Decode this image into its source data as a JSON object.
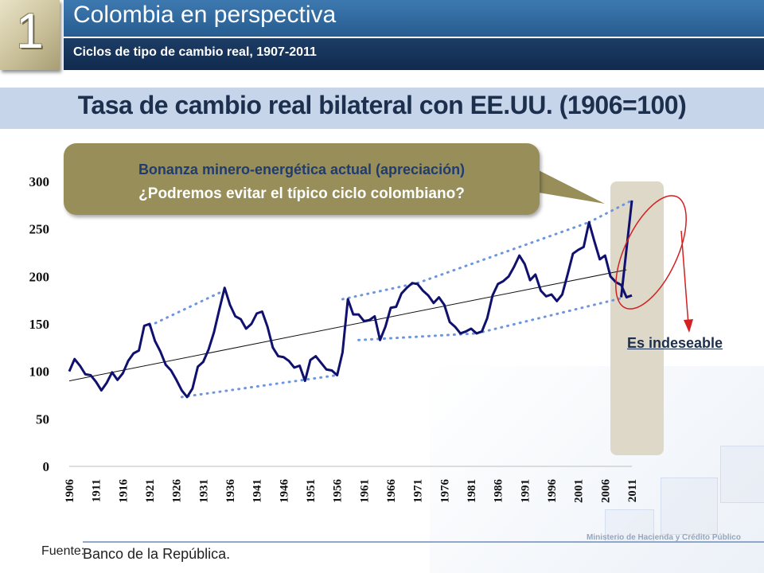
{
  "header": {
    "badge_number": "1",
    "title": "Colombia en perspectiva",
    "subtitle": "Ciclos de tipo de cambio real, 1907-2011"
  },
  "callout": {
    "line1": "Bonanza minero-energética actual (apreciación)",
    "line2": "¿Podremos evitar el típico ciclo colombiano?"
  },
  "annotation": {
    "note": "Es indeseable"
  },
  "footer": {
    "source_label": "Fuente:",
    "source": "Banco de la República.",
    "ministry": "Ministerio de Hacienda y Crédito Público"
  },
  "colors": {
    "series": "#10106e",
    "envelope": "#6d96dd",
    "trend": "#111111",
    "highlight": "#ddd8c8",
    "ellipse": "#d32020",
    "callout": "#988e59"
  },
  "chart_data": {
    "type": "line",
    "title": "Tasa de cambio real bilateral con EE.UU. (1906=100)",
    "xlabel": "",
    "ylabel": "",
    "xlim": [
      1906,
      2011
    ],
    "ylim": [
      0,
      300
    ],
    "yticks": [
      0,
      50,
      100,
      150,
      200,
      250,
      300
    ],
    "xticks": [
      1906,
      1911,
      1916,
      1921,
      1926,
      1931,
      1936,
      1941,
      1946,
      1951,
      1956,
      1961,
      1966,
      1971,
      1976,
      1981,
      1986,
      1991,
      1996,
      2001,
      2006,
      2011
    ],
    "grid": false,
    "legend": "none",
    "series": [
      {
        "x": [
          1906,
          1907,
          1908,
          1909,
          1910,
          1911,
          1912,
          1913,
          1914,
          1915,
          1916,
          1917,
          1918,
          1919,
          1920,
          1921,
          1922,
          1923,
          1924,
          1925,
          1926,
          1927,
          1928,
          1929,
          1930,
          1931,
          1932,
          1933,
          1934,
          1935,
          1936,
          1937,
          1938,
          1939,
          1940,
          1941,
          1942,
          1943,
          1944,
          1945,
          1946,
          1947,
          1948,
          1949,
          1950,
          1951,
          1952,
          1953,
          1954,
          1955,
          1956,
          1957,
          1958,
          1959,
          1960,
          1961,
          1962,
          1963,
          1964,
          1965,
          1966,
          1967,
          1968,
          1969,
          1970,
          1971,
          1972,
          1973,
          1974,
          1975,
          1976,
          1977,
          1978,
          1979,
          1980,
          1981,
          1982,
          1983,
          1984,
          1985,
          1986,
          1987,
          1988,
          1989,
          1990,
          1991,
          1992,
          1993,
          1994,
          1995,
          1996,
          1997,
          1998,
          1999,
          2000,
          2001,
          2002,
          2003,
          2004,
          2005,
          2006,
          2007,
          2008,
          2009,
          2010,
          2011
        ],
        "y": [
          100,
          113,
          106,
          97,
          96,
          89,
          80,
          88,
          99,
          91,
          98,
          111,
          119,
          122,
          148,
          150,
          132,
          121,
          107,
          101,
          91,
          80,
          73,
          82,
          105,
          110,
          123,
          141,
          165,
          188,
          170,
          158,
          155,
          145,
          150,
          161,
          163,
          147,
          125,
          116,
          115,
          111,
          104,
          106,
          90,
          112,
          116,
          109,
          102,
          101,
          96,
          120,
          176,
          160,
          160,
          153,
          154,
          158,
          133,
          147,
          167,
          168,
          182,
          188,
          193,
          192,
          185,
          180,
          172,
          178,
          170,
          152,
          147,
          140,
          142,
          145,
          140,
          142,
          156,
          180,
          192,
          195,
          200,
          210,
          222,
          213,
          196,
          202,
          185,
          179,
          181,
          174,
          181,
          202,
          224,
          228,
          231,
          257,
          237,
          218,
          222,
          200,
          194,
          191,
          178,
          180
        ]
      }
    ],
    "projection": {
      "x": [
        2009,
        2011
      ],
      "y": [
        178,
        280
      ]
    },
    "trend": {
      "x": [
        1906,
        2010
      ],
      "y": [
        90,
        207
      ]
    },
    "envelope_upper": [
      {
        "x": [
          1921,
          1936
        ],
        "y": [
          148,
          188
        ]
      },
      {
        "x": [
          1957,
          1971
        ],
        "y": [
          176,
          193
        ]
      },
      {
        "x": [
          1971,
          2003
        ],
        "y": [
          193,
          257
        ]
      },
      {
        "x": [
          2003,
          2011
        ],
        "y": [
          257,
          280
        ]
      }
    ],
    "envelope_lower": [
      {
        "x": [
          1927,
          1956
        ],
        "y": [
          73,
          96
        ]
      },
      {
        "x": [
          1960,
          1982
        ],
        "y": [
          133,
          140
        ]
      },
      {
        "x": [
          1982,
          2009
        ],
        "y": [
          140,
          177
        ]
      }
    ]
  }
}
